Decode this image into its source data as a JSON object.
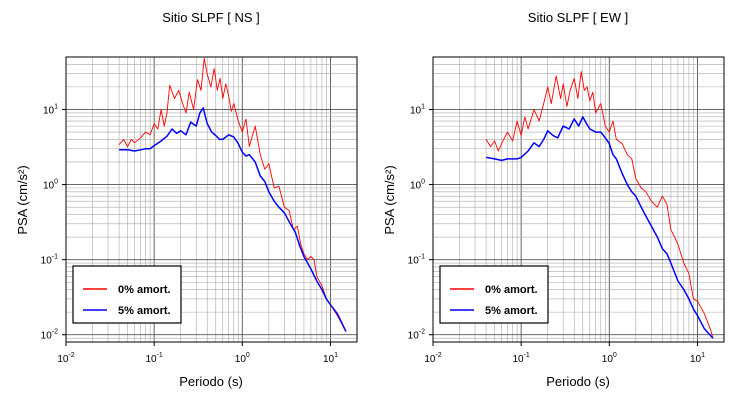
{
  "chart_data": [
    {
      "type": "line",
      "title": "Sitio SLPF [ NS ]",
      "xlabel": "Periodo (s)",
      "ylabel": "PSA (cm/s²)",
      "xscale": "log",
      "yscale": "log",
      "xlim": [
        0.01,
        20
      ],
      "ylim": [
        0.008,
        50
      ],
      "grid": true,
      "legend_placement": "bottom-left",
      "x_ticks": [
        {
          "value": 0.01,
          "base": "10",
          "exp": "-2"
        },
        {
          "value": 0.1,
          "base": "10",
          "exp": "-1"
        },
        {
          "value": 1,
          "base": "10",
          "exp": "0"
        },
        {
          "value": 10,
          "base": "10",
          "exp": "1"
        }
      ],
      "y_ticks": [
        {
          "value": 0.01,
          "base": "10",
          "exp": "-2"
        },
        {
          "value": 0.1,
          "base": "10",
          "exp": "-1"
        },
        {
          "value": 1,
          "base": "10",
          "exp": "0"
        },
        {
          "value": 10,
          "base": "10",
          "exp": "1"
        }
      ],
      "series": [
        {
          "name": "0% amort.",
          "color": "#ff0000",
          "x": [
            0.04,
            0.045,
            0.05,
            0.055,
            0.06,
            0.07,
            0.08,
            0.09,
            0.1,
            0.11,
            0.12,
            0.13,
            0.14,
            0.15,
            0.17,
            0.19,
            0.21,
            0.23,
            0.25,
            0.28,
            0.31,
            0.34,
            0.37,
            0.4,
            0.44,
            0.48,
            0.52,
            0.56,
            0.6,
            0.65,
            0.7,
            0.75,
            0.8,
            0.9,
            1.0,
            1.1,
            1.2,
            1.4,
            1.6,
            1.8,
            2.0,
            2.3,
            2.6,
            3.0,
            3.4,
            3.8,
            4.2,
            4.6,
            5.0,
            5.5,
            6.0,
            6.5,
            7.0,
            8.0,
            9.0,
            10.0,
            12.0,
            15.0
          ],
          "y": [
            3.4,
            4.0,
            3.2,
            4.0,
            3.6,
            4.2,
            5.0,
            4.6,
            6.5,
            5.5,
            10.0,
            6.0,
            9.0,
            21.0,
            14.0,
            18.0,
            12.0,
            9.0,
            17.0,
            10.0,
            25.0,
            18.0,
            48.0,
            30.0,
            20.0,
            35.0,
            18.0,
            26.0,
            14.0,
            22.0,
            15.0,
            9.5,
            12.0,
            7.0,
            5.0,
            7.5,
            3.2,
            6.0,
            2.5,
            1.6,
            1.9,
            0.9,
            0.95,
            0.5,
            0.45,
            0.25,
            0.28,
            0.16,
            0.12,
            0.1,
            0.11,
            0.1,
            0.06,
            0.045,
            0.03,
            0.025,
            0.018,
            0.011
          ]
        },
        {
          "name": "5% amort.",
          "color": "#0000ff",
          "x": [
            0.04,
            0.05,
            0.06,
            0.07,
            0.08,
            0.09,
            0.1,
            0.12,
            0.14,
            0.16,
            0.18,
            0.2,
            0.23,
            0.26,
            0.3,
            0.33,
            0.36,
            0.4,
            0.45,
            0.5,
            0.55,
            0.6,
            0.7,
            0.8,
            0.9,
            1.0,
            1.1,
            1.2,
            1.4,
            1.6,
            1.8,
            2.0,
            2.3,
            2.6,
            3.0,
            3.5,
            4.0,
            4.5,
            5.0,
            6.0,
            7.0,
            8.0,
            9.0,
            10.0,
            12.0,
            15.0
          ],
          "y": [
            2.9,
            2.9,
            2.8,
            2.9,
            3.0,
            3.0,
            3.3,
            3.8,
            4.4,
            5.5,
            4.8,
            5.2,
            4.6,
            6.8,
            6.0,
            9.0,
            10.5,
            6.5,
            5.0,
            4.5,
            4.0,
            4.0,
            4.6,
            4.3,
            3.5,
            2.7,
            2.4,
            2.5,
            2.0,
            1.3,
            1.1,
            0.8,
            0.6,
            0.5,
            0.42,
            0.3,
            0.23,
            0.15,
            0.11,
            0.075,
            0.052,
            0.04,
            0.03,
            0.025,
            0.019,
            0.011
          ]
        }
      ]
    },
    {
      "type": "line",
      "title": "Sitio SLPF [ EW ]",
      "xlabel": "Periodo (s)",
      "ylabel": "PSA (cm/s²)",
      "xscale": "log",
      "yscale": "log",
      "xlim": [
        0.01,
        20
      ],
      "ylim": [
        0.008,
        50
      ],
      "grid": true,
      "legend_placement": "bottom-left",
      "x_ticks": [
        {
          "value": 0.01,
          "base": "10",
          "exp": "-2"
        },
        {
          "value": 0.1,
          "base": "10",
          "exp": "-1"
        },
        {
          "value": 1,
          "base": "10",
          "exp": "0"
        },
        {
          "value": 10,
          "base": "10",
          "exp": "1"
        }
      ],
      "y_ticks": [
        {
          "value": 0.01,
          "base": "10",
          "exp": "-2"
        },
        {
          "value": 0.1,
          "base": "10",
          "exp": "-1"
        },
        {
          "value": 1,
          "base": "10",
          "exp": "0"
        },
        {
          "value": 10,
          "base": "10",
          "exp": "1"
        }
      ],
      "series": [
        {
          "name": "0% amort.",
          "color": "#ff0000",
          "x": [
            0.04,
            0.045,
            0.05,
            0.055,
            0.06,
            0.07,
            0.08,
            0.09,
            0.1,
            0.11,
            0.12,
            0.13,
            0.14,
            0.16,
            0.18,
            0.2,
            0.22,
            0.25,
            0.28,
            0.3,
            0.33,
            0.36,
            0.4,
            0.44,
            0.48,
            0.52,
            0.56,
            0.6,
            0.65,
            0.7,
            0.8,
            0.9,
            1.0,
            1.1,
            1.2,
            1.4,
            1.6,
            1.8,
            2.0,
            2.3,
            2.6,
            3.0,
            3.5,
            4.0,
            4.5,
            5.0,
            5.5,
            6.0,
            7.0,
            8.0,
            9.0,
            10.0,
            12.0,
            14.0,
            15.0
          ],
          "y": [
            4.0,
            3.2,
            3.8,
            2.8,
            3.5,
            5.0,
            3.8,
            7.0,
            4.5,
            8.0,
            5.5,
            7.5,
            10.0,
            7.0,
            12.0,
            20.0,
            12.0,
            28.0,
            14.0,
            22.0,
            11.0,
            18.0,
            26.0,
            14.0,
            32.0,
            18.0,
            20.0,
            13.0,
            17.0,
            9.0,
            12.0,
            6.0,
            5.0,
            7.0,
            4.0,
            3.5,
            2.5,
            2.2,
            1.2,
            0.9,
            0.8,
            0.6,
            0.5,
            0.7,
            0.55,
            0.25,
            0.2,
            0.16,
            0.09,
            0.065,
            0.03,
            0.028,
            0.019,
            0.012,
            0.009
          ]
        },
        {
          "name": "5% amort.",
          "color": "#0000ff",
          "x": [
            0.04,
            0.05,
            0.06,
            0.07,
            0.08,
            0.09,
            0.1,
            0.12,
            0.14,
            0.16,
            0.18,
            0.2,
            0.23,
            0.26,
            0.3,
            0.35,
            0.4,
            0.45,
            0.5,
            0.55,
            0.6,
            0.7,
            0.8,
            0.9,
            1.0,
            1.1,
            1.2,
            1.4,
            1.6,
            1.8,
            2.0,
            2.3,
            2.6,
            3.0,
            3.5,
            4.0,
            4.5,
            5.0,
            6.0,
            7.0,
            8.0,
            9.0,
            10.0,
            12.0,
            15.0
          ],
          "y": [
            2.3,
            2.2,
            2.1,
            2.2,
            2.2,
            2.2,
            2.3,
            2.8,
            3.6,
            3.2,
            4.0,
            5.2,
            4.5,
            4.2,
            6.0,
            5.5,
            7.5,
            6.0,
            8.0,
            6.5,
            5.5,
            5.0,
            5.0,
            4.2,
            3.5,
            2.5,
            2.2,
            1.4,
            1.0,
            0.8,
            0.7,
            0.5,
            0.38,
            0.28,
            0.2,
            0.14,
            0.12,
            0.09,
            0.052,
            0.04,
            0.03,
            0.022,
            0.018,
            0.012,
            0.009
          ]
        }
      ]
    }
  ]
}
